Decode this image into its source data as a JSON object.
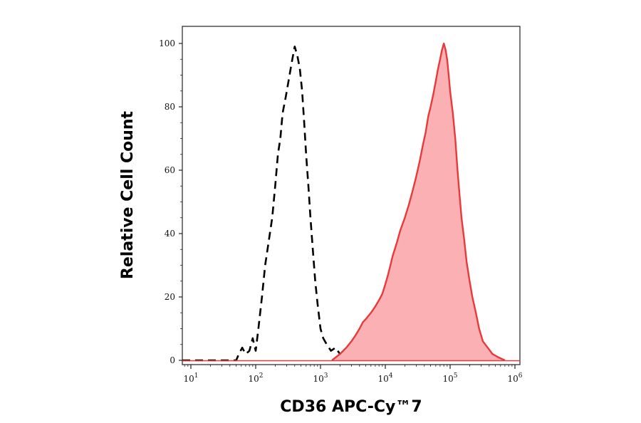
{
  "chart_data": {
    "type": "area",
    "xlabel": "CD36 APC-Cy™7",
    "ylabel": "Relative Cell Count",
    "x_scale": "log",
    "xlim": [
      10,
      1000000
    ],
    "ylim": [
      0,
      100
    ],
    "x_ticks": [
      {
        "base": "10",
        "exp": "1",
        "value": 10
      },
      {
        "base": "10",
        "exp": "2",
        "value": 100
      },
      {
        "base": "10",
        "exp": "3",
        "value": 1000
      },
      {
        "base": "10",
        "exp": "4",
        "value": 10000
      },
      {
        "base": "10",
        "exp": "5",
        "value": 100000
      },
      {
        "base": "10",
        "exp": "6",
        "value": 1000000
      }
    ],
    "y_ticks": [
      "0",
      "20",
      "40",
      "60",
      "80",
      "100"
    ],
    "grid": false,
    "legend": "none",
    "series": [
      {
        "style": "dashed-outline",
        "color": "#000000",
        "points": [
          [
            7,
            0
          ],
          [
            50,
            0
          ],
          [
            55,
            2
          ],
          [
            62,
            4
          ],
          [
            70,
            2
          ],
          [
            80,
            3
          ],
          [
            90,
            7
          ],
          [
            100,
            3
          ],
          [
            110,
            10
          ],
          [
            125,
            20
          ],
          [
            140,
            30
          ],
          [
            160,
            38
          ],
          [
            180,
            45
          ],
          [
            200,
            55
          ],
          [
            220,
            65
          ],
          [
            240,
            70
          ],
          [
            260,
            78
          ],
          [
            290,
            83
          ],
          [
            320,
            88
          ],
          [
            360,
            94
          ],
          [
            400,
            99
          ],
          [
            440,
            96
          ],
          [
            480,
            92
          ],
          [
            520,
            85
          ],
          [
            560,
            75
          ],
          [
            600,
            65
          ],
          [
            650,
            55
          ],
          [
            700,
            45
          ],
          [
            760,
            35
          ],
          [
            830,
            25
          ],
          [
            900,
            18
          ],
          [
            1000,
            10
          ],
          [
            1100,
            7
          ],
          [
            1250,
            5
          ],
          [
            1450,
            3
          ],
          [
            1700,
            4
          ],
          [
            2000,
            2
          ],
          [
            2500,
            3
          ],
          [
            3200,
            2
          ],
          [
            4000,
            1
          ],
          [
            5000,
            1
          ],
          [
            6000,
            0
          ]
        ]
      },
      {
        "style": "filled",
        "color": "#e8393b",
        "fill": "#fbb1b3",
        "points": [
          [
            1500,
            0
          ],
          [
            2000,
            2
          ],
          [
            2500,
            4
          ],
          [
            3000,
            6
          ],
          [
            3500,
            8
          ],
          [
            4000,
            10
          ],
          [
            4500,
            12
          ],
          [
            5000,
            13
          ],
          [
            6000,
            15
          ],
          [
            7000,
            17
          ],
          [
            8000,
            19
          ],
          [
            9000,
            21
          ],
          [
            10000,
            24
          ],
          [
            11000,
            27
          ],
          [
            12000,
            30
          ],
          [
            13000,
            33
          ],
          [
            15000,
            37
          ],
          [
            17000,
            41
          ],
          [
            20000,
            45
          ],
          [
            23000,
            49
          ],
          [
            26000,
            53
          ],
          [
            30000,
            58
          ],
          [
            34000,
            63
          ],
          [
            38000,
            68
          ],
          [
            42000,
            72
          ],
          [
            46000,
            77
          ],
          [
            50000,
            80
          ],
          [
            55000,
            84
          ],
          [
            60000,
            88
          ],
          [
            65000,
            92
          ],
          [
            70000,
            95
          ],
          [
            75000,
            98
          ],
          [
            80000,
            100
          ],
          [
            85000,
            98
          ],
          [
            90000,
            95
          ],
          [
            95000,
            90
          ],
          [
            100000,
            85
          ],
          [
            110000,
            78
          ],
          [
            120000,
            70
          ],
          [
            130000,
            60
          ],
          [
            140000,
            52
          ],
          [
            150000,
            45
          ],
          [
            165000,
            38
          ],
          [
            180000,
            31
          ],
          [
            200000,
            25
          ],
          [
            220000,
            20
          ],
          [
            250000,
            15
          ],
          [
            280000,
            10
          ],
          [
            320000,
            6
          ],
          [
            380000,
            4
          ],
          [
            450000,
            2
          ],
          [
            550000,
            1
          ],
          [
            700000,
            0
          ]
        ]
      }
    ]
  }
}
